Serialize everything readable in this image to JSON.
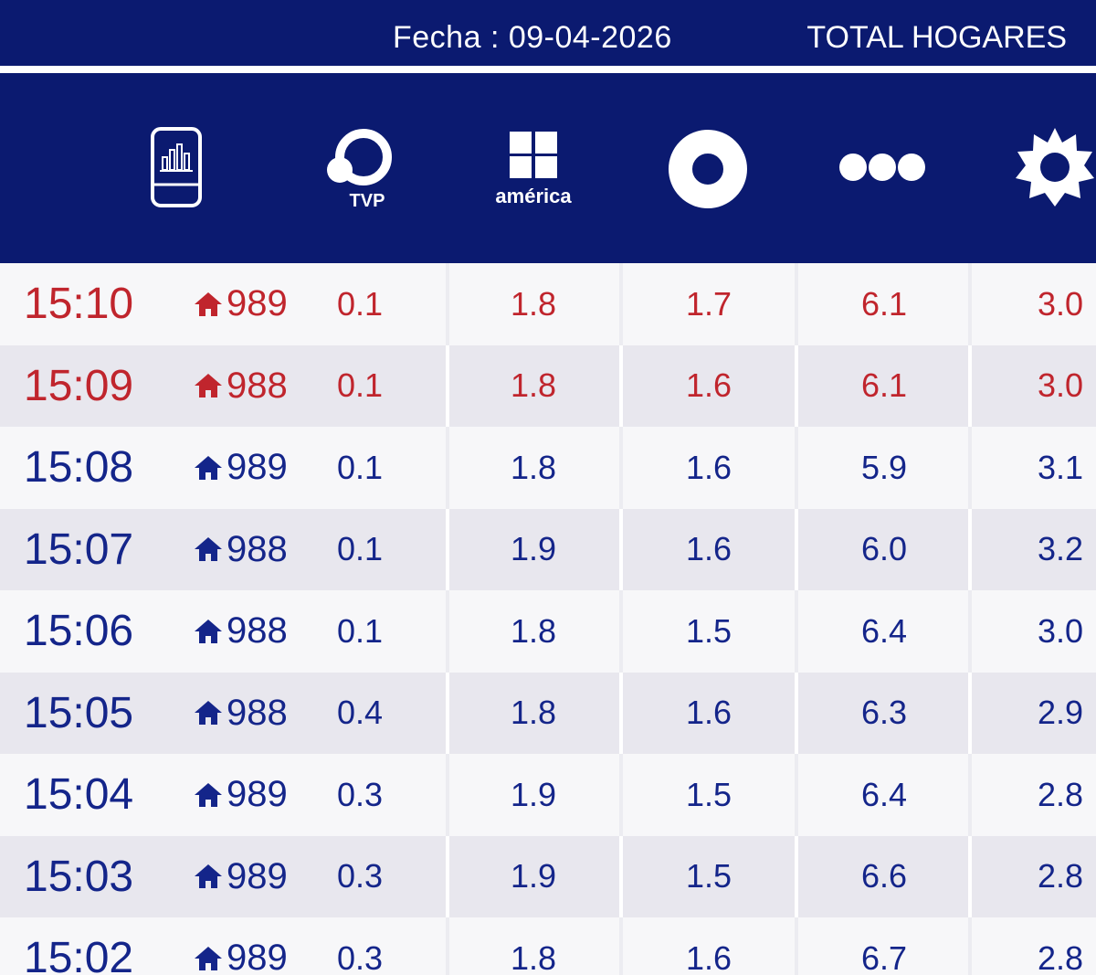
{
  "topbar": {
    "fecha": "Fecha : 09-04-2026",
    "audience": "TOTAL HOGARES"
  },
  "channels": [
    {
      "icon": "phone-chart-icon"
    },
    {
      "icon": "tvp-logo-icon",
      "label": "TVP"
    },
    {
      "icon": "america-logo-icon",
      "label": "américa"
    },
    {
      "icon": "ring-logo-icon"
    },
    {
      "icon": "three-dots-logo-icon"
    },
    {
      "icon": "sun-logo-icon"
    }
  ],
  "colors": {
    "navy": "#0b1a70",
    "highlight": "#c0252d",
    "normal": "#14258a"
  },
  "rows": [
    {
      "time": "15:10",
      "homes": "989",
      "tvp": "0.1",
      "america": "1.8",
      "c9": "1.7",
      "c13": "6.1",
      "telefe": "3.0",
      "highlight": true
    },
    {
      "time": "15:09",
      "homes": "988",
      "tvp": "0.1",
      "america": "1.8",
      "c9": "1.6",
      "c13": "6.1",
      "telefe": "3.0",
      "highlight": true
    },
    {
      "time": "15:08",
      "homes": "989",
      "tvp": "0.1",
      "america": "1.8",
      "c9": "1.6",
      "c13": "5.9",
      "telefe": "3.1",
      "highlight": false
    },
    {
      "time": "15:07",
      "homes": "988",
      "tvp": "0.1",
      "america": "1.9",
      "c9": "1.6",
      "c13": "6.0",
      "telefe": "3.2",
      "highlight": false
    },
    {
      "time": "15:06",
      "homes": "988",
      "tvp": "0.1",
      "america": "1.8",
      "c9": "1.5",
      "c13": "6.4",
      "telefe": "3.0",
      "highlight": false
    },
    {
      "time": "15:05",
      "homes": "988",
      "tvp": "0.4",
      "america": "1.8",
      "c9": "1.6",
      "c13": "6.3",
      "telefe": "2.9",
      "highlight": false
    },
    {
      "time": "15:04",
      "homes": "989",
      "tvp": "0.3",
      "america": "1.9",
      "c9": "1.5",
      "c13": "6.4",
      "telefe": "2.8",
      "highlight": false
    },
    {
      "time": "15:03",
      "homes": "989",
      "tvp": "0.3",
      "america": "1.9",
      "c9": "1.5",
      "c13": "6.6",
      "telefe": "2.8",
      "highlight": false
    },
    {
      "time": "15:02",
      "homes": "989",
      "tvp": "0.3",
      "america": "1.8",
      "c9": "1.6",
      "c13": "6.7",
      "telefe": "2.8",
      "highlight": false
    }
  ]
}
